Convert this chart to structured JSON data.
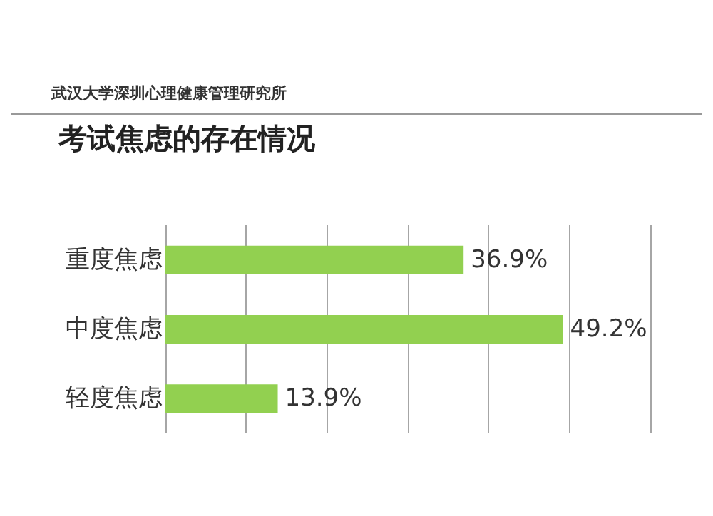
{
  "chart_data": {
    "type": "bar",
    "orientation": "horizontal",
    "title": "考试焦虑的存在情况",
    "annotations": [
      "武汉大学深圳心理健康管理研究所"
    ],
    "categories": [
      "重度焦虑",
      "中度焦虑",
      "轻度焦虑"
    ],
    "values": [
      36.9,
      49.2,
      13.9
    ],
    "color": "#92d050",
    "value_labels": [
      "36.9%",
      "49.2%",
      "13.9%"
    ],
    "xlim": [
      0,
      60
    ],
    "xticks": [
      0,
      10,
      20,
      30,
      40,
      50,
      60
    ],
    "grid": "x",
    "tick_labels": "y"
  }
}
